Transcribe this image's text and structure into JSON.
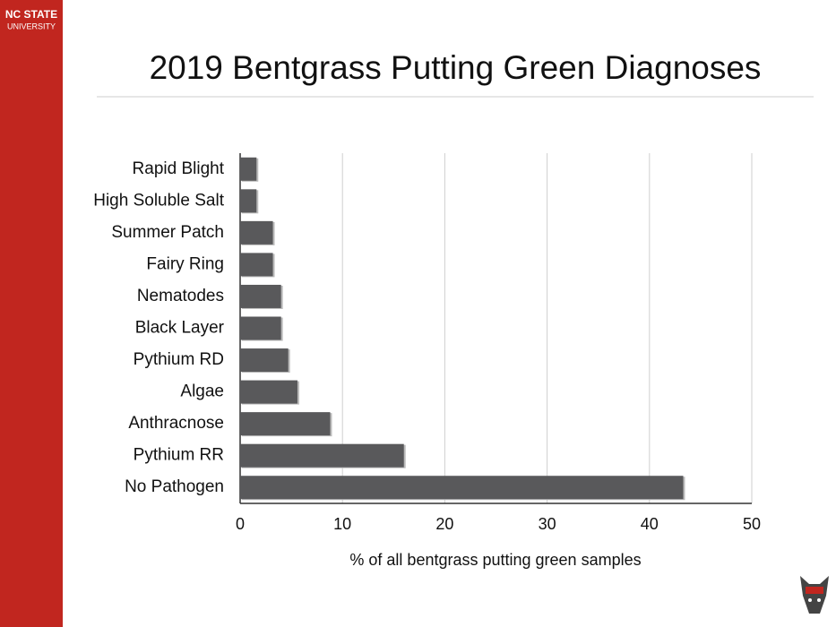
{
  "branding": {
    "line1": "NC STATE",
    "line2": "UNIVERSITY"
  },
  "chart_data": {
    "type": "hbar",
    "title": "2019 Bentgrass Putting Green Diagnoses",
    "categories": [
      "Rapid Blight",
      "High Soluble Salt",
      "Summer Patch",
      "Fairy Ring",
      "Nematodes",
      "Black Layer",
      "Pythium RD",
      "Algae",
      "Anthracnose",
      "Pythium RR",
      "No Pathogen"
    ],
    "values": [
      1.6,
      1.6,
      3.2,
      3.2,
      4.0,
      4.0,
      4.7,
      5.6,
      8.8,
      16.0,
      43.3
    ],
    "color": "#59595b",
    "x_label": "% of all bentgrass putting green samples",
    "xlim": [
      0,
      50
    ],
    "xticks": [
      0,
      10,
      20,
      30,
      40,
      50
    ],
    "grid": true
  }
}
